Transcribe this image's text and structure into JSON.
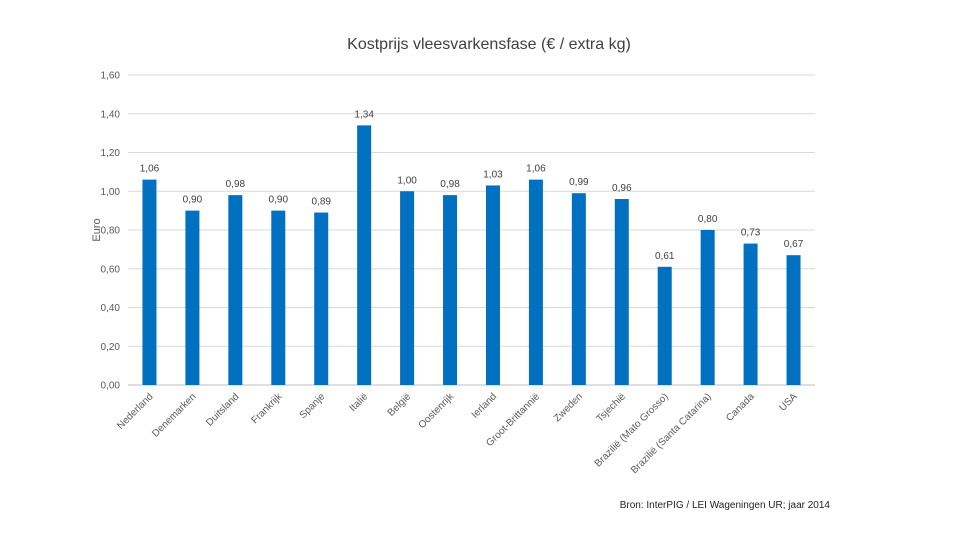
{
  "chart_data": {
    "type": "bar",
    "title": "Kostprijs vleesvarkensfase (€ / extra kg)",
    "ylabel": "Euro",
    "xlabel": "",
    "ylim": [
      0,
      1.6
    ],
    "ytick_step": 0.2,
    "ytick_labels": [
      "0,00",
      "0,20",
      "0,40",
      "0,60",
      "0,80",
      "1,00",
      "1,20",
      "1,40",
      "1,60"
    ],
    "grid": true,
    "bar_color": "#0070C0",
    "grid_color": "#D9D9D9",
    "categories": [
      "Nederland",
      "Denemarken",
      "Duitsland",
      "Frankrijk",
      "Spanje",
      "Italië",
      "België",
      "Oostenrijk",
      "Ierland",
      "Groot-Brittannië",
      "Zweden",
      "Tsjechië",
      "Brazilië (Mato Grosso)",
      "Brazilië (Santa Catarina)",
      "Canada",
      "USA"
    ],
    "values": [
      1.06,
      0.9,
      0.98,
      0.9,
      0.89,
      1.34,
      1.0,
      0.98,
      1.03,
      1.06,
      0.99,
      0.96,
      0.61,
      0.8,
      0.73,
      0.67
    ],
    "value_labels": [
      "1,06",
      "0,90",
      "0,98",
      "0,90",
      "0,89",
      "1,34",
      "1,00",
      "0,98",
      "1,03",
      "1,06",
      "0,99",
      "0,96",
      "0,61",
      "0,80",
      "0,73",
      "0,67"
    ],
    "source": "Bron: InterPIG / LEI Wageningen UR; jaar 2014"
  }
}
